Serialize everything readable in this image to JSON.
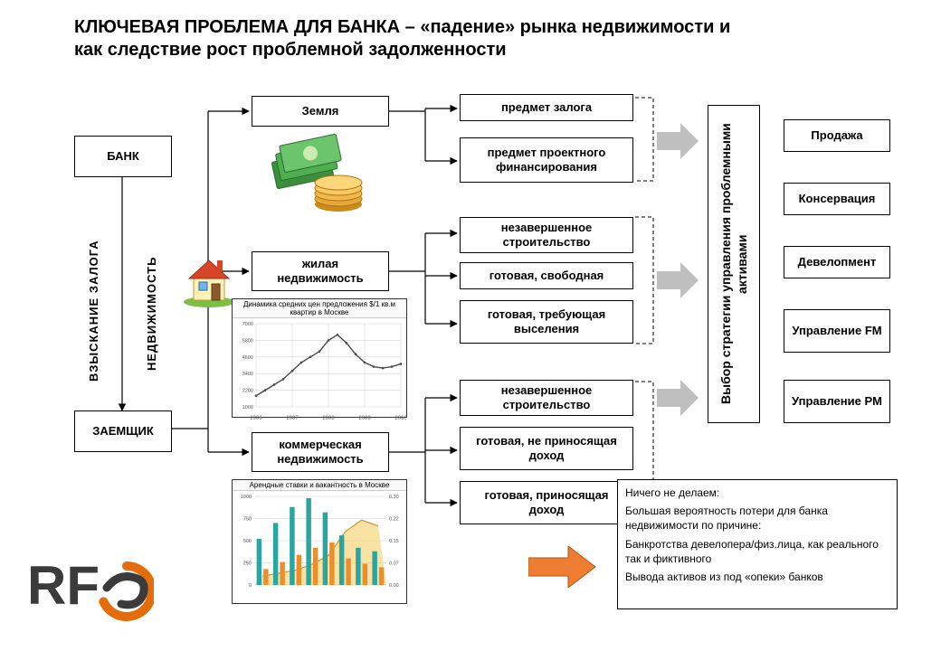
{
  "title": {
    "line1": "КЛЮЧЕВАЯ ПРОБЛЕМА ДЛЯ БАНКА – «падение» рынка недвижимости и",
    "line2": "как следствие рост проблемной задолженности",
    "fontsize": 20,
    "color": "#000000"
  },
  "colors": {
    "border": "#000000",
    "background": "#ffffff",
    "gray_arrow": "#bfbfbf",
    "orange_arrow": "#ed7d31",
    "line": "#000000",
    "logo_orange": "#e46c0a",
    "logo_dark": "#3b3b3b",
    "chart_grid": "#d0d0d0",
    "chart_line": "#4a4a4a",
    "bar_teal": "#2aa5a0",
    "bar_orange": "#e98f2e",
    "area_yellow": "#f5c85a"
  },
  "left": {
    "bank": "БАНК",
    "borrower": "ЗАЕМЩИК",
    "label_left": "ВЗЫСКАНИЕ ЗАЛОГА",
    "label_right": "НЕДВИЖИМОСТЬ"
  },
  "categories": {
    "land": "Земля",
    "residential": "жилая недвижимость",
    "commercial": "коммерческая недвижимость"
  },
  "subitems": {
    "s1": "предмет залога",
    "s2": "предмет проектного финансирования",
    "s3": "незавершенное строительство",
    "s4": "готовая, свободная",
    "s5": "готовая, требующая выселения",
    "s6": "незавершенное строительство",
    "s7": "готовая, не приносящая доход",
    "s8": "готовая, приносящая доход"
  },
  "strategy_label": "Выбор стратегии управления проблемными активами",
  "options": {
    "o1": "Продажа",
    "o2": "Консервация",
    "o3": "Девелопмент",
    "o4": "Управление FM",
    "o5": "Управление PM"
  },
  "note": {
    "l1": "Ничего не делаем:",
    "l2": "Большая вероятность потери для банка недвижимости по причине:",
    "l3": "Банкротства девелопера/физ.лица, как реального так и фиктивного",
    "l4": "Вывода активов из под «опеки» банков"
  },
  "chart1": {
    "title": "Динамика средних цен предложения $/1 кв.м квартир в Москве",
    "x_labels": [
      "2006",
      "2007",
      "2008",
      "2009",
      "2010"
    ],
    "series": [
      1800,
      2200,
      2600,
      3000,
      3600,
      4200,
      4600,
      5000,
      5800,
      6200,
      5600,
      4800,
      4200,
      3900,
      3800,
      3900,
      4100
    ],
    "ylim": [
      1000,
      7000
    ],
    "line_color": "#4a4a4a",
    "grid_color": "#d0d0d0",
    "bg": "#ffffff"
  },
  "chart2": {
    "title": "Арендные ставки и вакантность в Москве",
    "x_count": 8,
    "bars_a": [
      520,
      700,
      880,
      980,
      820,
      560,
      420,
      380
    ],
    "bars_b": [
      180,
      260,
      340,
      420,
      480,
      300,
      240,
      200
    ],
    "area": [
      0.03,
      0.04,
      0.05,
      0.07,
      0.1,
      0.18,
      0.22,
      0.2
    ],
    "y_bars": [
      0,
      1000
    ],
    "y_area": [
      0,
      0.3
    ],
    "bar_a_color": "#2aa5a0",
    "bar_b_color": "#e98f2e",
    "area_color": "#f5c85a",
    "grid_color": "#d0d0d0",
    "bg": "#ffffff"
  },
  "layout": {
    "box_font": 13,
    "note_font": 12
  }
}
